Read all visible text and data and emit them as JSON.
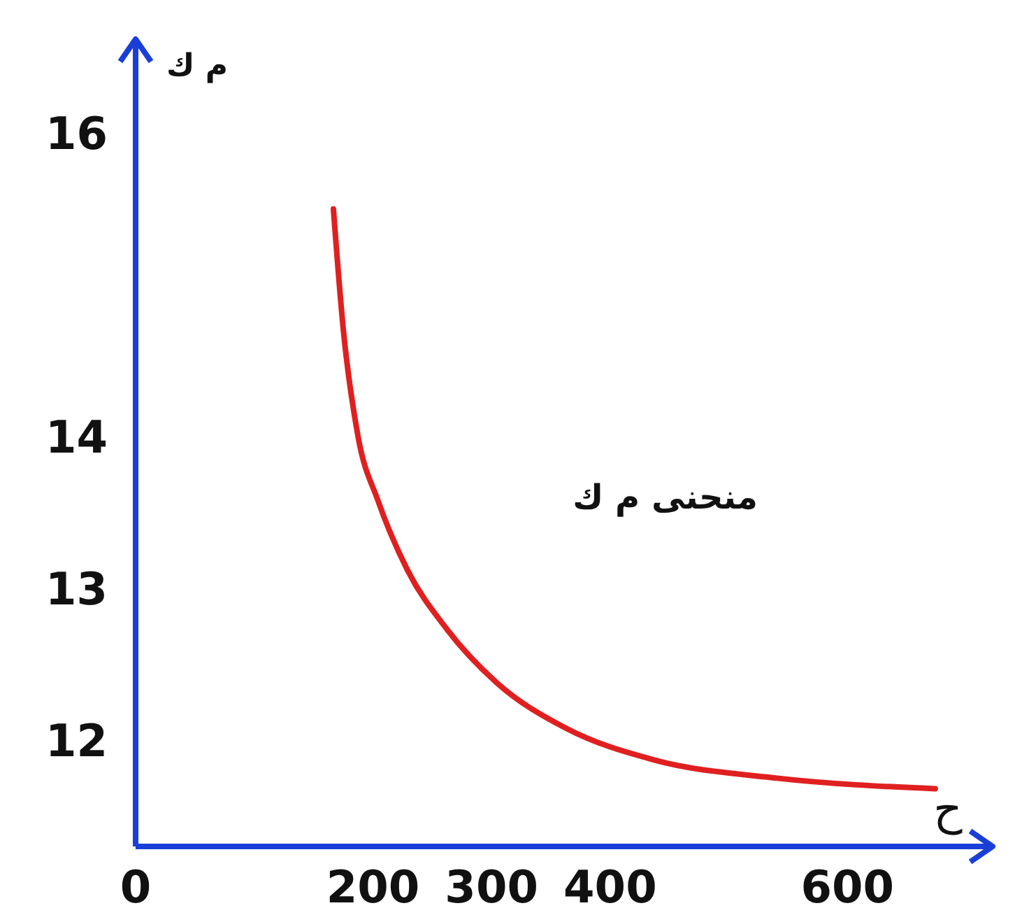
{
  "chart_data": {
    "type": "line",
    "xlabel": "ح",
    "ylabel": "م ك",
    "x": [
      166.7,
      175,
      187.5,
      204.2,
      229.2,
      262.5,
      304.2,
      362.5,
      437,
      540.7,
      674
    ],
    "series": [
      {
        "color": "#e02020",
        "values": [
          15.5,
          14.71,
          14.0,
          13.58,
          13.12,
          12.73,
          12.38,
          12.08,
          11.87,
          11.75,
          11.68
        ]
      }
    ],
    "xlim": [
      0,
      720
    ],
    "xticks": [
      0,
      200,
      300,
      400,
      600
    ],
    "ylim": [
      11.3,
      16.6
    ],
    "yticks": [
      12,
      13,
      14,
      16
    ],
    "annotations": [
      "منحنى م ك"
    ],
    "grid": false,
    "marker": "none",
    "line_style": "solid"
  }
}
